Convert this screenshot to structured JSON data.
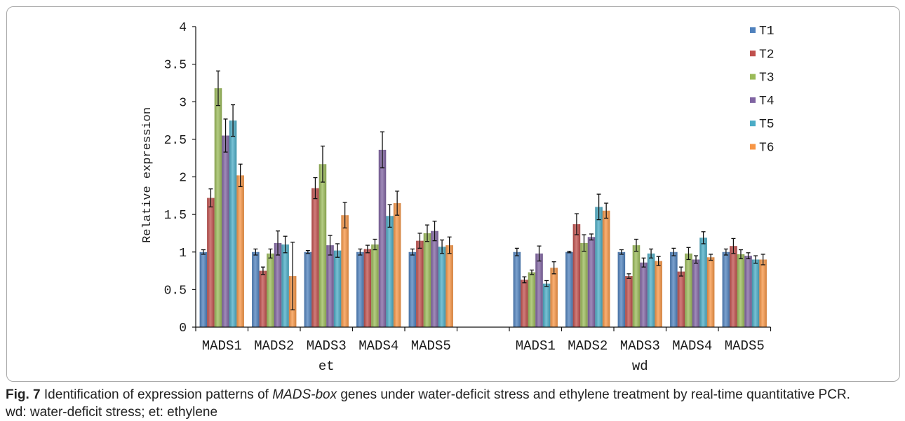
{
  "chart_data": {
    "type": "bar",
    "ylabel": "Relative expression",
    "ylim": [
      0,
      4
    ],
    "yticks": [
      "0",
      "0.5",
      "1",
      "1.5",
      "2",
      "2.5",
      "3",
      "3.5",
      "4"
    ],
    "grid": false,
    "legend_position": "top-right",
    "groups": [
      {
        "label": "et",
        "categories": [
          "MADS1",
          "MADS2",
          "MADS3",
          "MADS4",
          "MADS5"
        ]
      },
      {
        "label": "wd",
        "categories": [
          "MADS1",
          "MADS2",
          "MADS3",
          "MADS4",
          "MADS5"
        ]
      }
    ],
    "series": [
      {
        "name": "T1",
        "color": "#4F81BD",
        "values": [
          1.0,
          1.0,
          1.0,
          1.0,
          1.0,
          1.0,
          1.0,
          1.0,
          1.0,
          1.0
        ],
        "errors": [
          0.03,
          0.04,
          0.02,
          0.04,
          0.04,
          0.05,
          0.01,
          0.03,
          0.05,
          0.04
        ]
      },
      {
        "name": "T2",
        "color": "#C0504D",
        "values": [
          1.72,
          0.75,
          1.85,
          1.04,
          1.15,
          0.63,
          1.37,
          0.68,
          0.74,
          1.08
        ],
        "errors": [
          0.12,
          0.05,
          0.14,
          0.05,
          0.1,
          0.04,
          0.14,
          0.03,
          0.06,
          0.1
        ]
      },
      {
        "name": "T3",
        "color": "#9BBB59",
        "values": [
          3.18,
          0.98,
          2.17,
          1.1,
          1.25,
          0.73,
          1.12,
          1.09,
          0.98,
          0.97
        ],
        "errors": [
          0.23,
          0.06,
          0.24,
          0.07,
          0.11,
          0.03,
          0.11,
          0.08,
          0.08,
          0.06
        ]
      },
      {
        "name": "T4",
        "color": "#8064A2",
        "values": [
          2.55,
          1.12,
          1.09,
          2.36,
          1.28,
          0.98,
          1.2,
          0.86,
          0.9,
          0.95
        ],
        "errors": [
          0.22,
          0.16,
          0.13,
          0.24,
          0.13,
          0.1,
          0.04,
          0.06,
          0.05,
          0.04
        ]
      },
      {
        "name": "T5",
        "color": "#4BACC6",
        "values": [
          2.75,
          1.1,
          1.02,
          1.48,
          1.07,
          0.58,
          1.6,
          0.98,
          1.19,
          0.9
        ],
        "errors": [
          0.21,
          0.11,
          0.09,
          0.15,
          0.09,
          0.04,
          0.17,
          0.06,
          0.08,
          0.05
        ]
      },
      {
        "name": "T6",
        "color": "#F79646",
        "values": [
          2.02,
          0.68,
          1.49,
          1.65,
          1.09,
          0.79,
          1.55,
          0.88,
          0.93,
          0.9
        ],
        "errors": [
          0.15,
          0.45,
          0.17,
          0.16,
          0.11,
          0.08,
          0.1,
          0.06,
          0.04,
          0.07
        ]
      }
    ]
  },
  "caption": {
    "label": "Fig. 7",
    "text_before": "Identification of expression patterns of",
    "gene_family": "MADS-box",
    "text_after": "genes under water-deficit stress and ethylene treatment by real-time quantitative PCR.",
    "abbreviations": "wd: water-deficit stress; et: ethylene"
  }
}
